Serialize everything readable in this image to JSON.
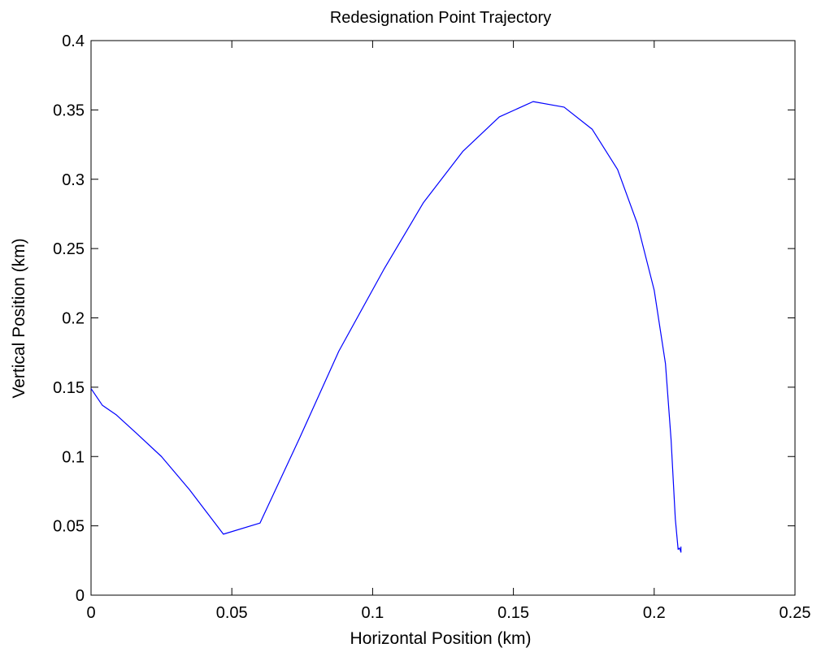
{
  "chart_data": {
    "type": "line",
    "title": "Redesignation Point Trajectory",
    "xlabel": "Horizontal Position (km)",
    "ylabel": "Vertical Position (km)",
    "xlim": [
      0,
      0.25
    ],
    "ylim": [
      0,
      0.4
    ],
    "xticks": [
      0,
      0.05,
      0.1,
      0.15,
      0.2,
      0.25
    ],
    "xtick_labels": [
      "0",
      "0.05",
      "0.1",
      "0.15",
      "0.2",
      "0.25"
    ],
    "yticks": [
      0,
      0.05,
      0.1,
      0.15,
      0.2,
      0.25,
      0.3,
      0.35,
      0.4
    ],
    "ytick_labels": [
      "0",
      "0.05",
      "0.1",
      "0.15",
      "0.2",
      "0.25",
      "0.3",
      "0.35",
      "0.4"
    ],
    "grid": false,
    "line_color": "#0000ff",
    "x": [
      0.0,
      0.004,
      0.009,
      0.016,
      0.025,
      0.035,
      0.047,
      0.06,
      0.074,
      0.088,
      0.104,
      0.118,
      0.132,
      0.145,
      0.157,
      0.168,
      0.178,
      0.187,
      0.194,
      0.2,
      0.204,
      0.206,
      0.2075,
      0.2085,
      0.209,
      0.2095,
      0.2095
    ],
    "y": [
      0.149,
      0.137,
      0.13,
      0.117,
      0.1,
      0.076,
      0.044,
      0.052,
      0.113,
      0.176,
      0.235,
      0.283,
      0.32,
      0.345,
      0.356,
      0.352,
      0.336,
      0.307,
      0.268,
      0.22,
      0.167,
      0.112,
      0.055,
      0.033,
      0.034,
      0.031,
      0.035
    ]
  }
}
